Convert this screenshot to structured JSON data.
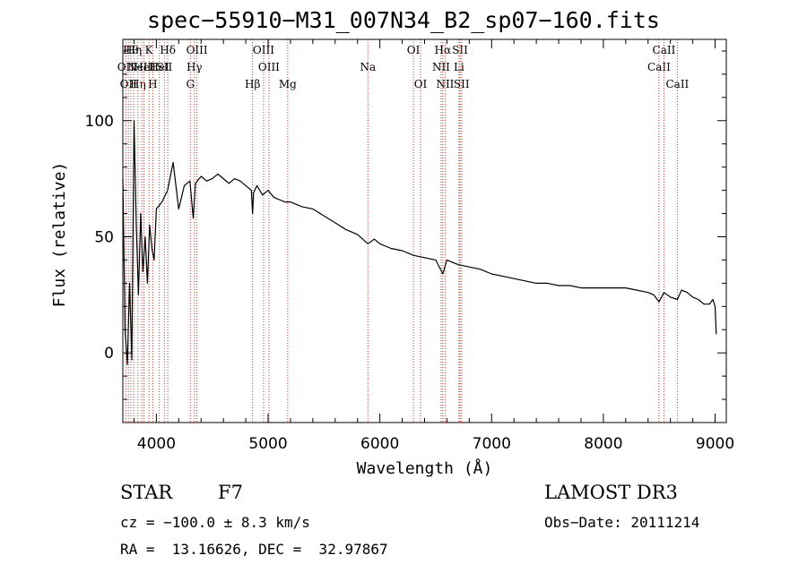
{
  "chart_data": {
    "type": "line",
    "title": "spec−55910−M31_007N34_B2_sp07−160.fits",
    "xlabel": "Wavelength (Å)",
    "ylabel": "Flux (relative)",
    "xlim": [
      3700,
      9100
    ],
    "ylim": [
      -30,
      135
    ],
    "xticks": [
      4000,
      5000,
      6000,
      7000,
      8000,
      9000
    ],
    "yticks": [
      0,
      50,
      100
    ],
    "series": [
      {
        "name": "flux",
        "x": [
          3700,
          3720,
          3740,
          3760,
          3780,
          3800,
          3820,
          3840,
          3860,
          3880,
          3900,
          3920,
          3940,
          3960,
          3980,
          4000,
          4050,
          4100,
          4150,
          4200,
          4250,
          4300,
          4330,
          4350,
          4400,
          4450,
          4500,
          4550,
          4600,
          4650,
          4700,
          4750,
          4800,
          4850,
          4861,
          4870,
          4900,
          4950,
          5000,
          5050,
          5100,
          5150,
          5200,
          5300,
          5400,
          5500,
          5600,
          5700,
          5800,
          5893,
          5950,
          6000,
          6100,
          6200,
          6300,
          6400,
          6500,
          6563,
          6600,
          6700,
          6800,
          6900,
          7000,
          7100,
          7200,
          7300,
          7400,
          7500,
          7600,
          7700,
          7800,
          7900,
          8000,
          8100,
          8200,
          8300,
          8400,
          8450,
          8498,
          8542,
          8600,
          8662,
          8700,
          8750,
          8800,
          8850,
          8900,
          8950,
          8980,
          9000,
          9010
        ],
        "values": [
          75,
          10,
          -5,
          30,
          -3,
          100,
          55,
          25,
          60,
          35,
          50,
          30,
          55,
          45,
          40,
          62,
          65,
          70,
          82,
          62,
          72,
          74,
          58,
          73,
          76,
          74,
          75,
          77,
          75,
          73,
          75,
          74,
          72,
          70,
          60,
          69,
          72,
          68,
          70,
          67,
          66,
          65,
          65,
          63,
          62,
          59,
          56,
          53,
          51,
          47,
          49,
          47,
          45,
          44,
          42,
          41,
          40,
          34,
          40,
          38,
          37,
          36,
          34,
          33,
          32,
          31,
          30,
          30,
          29,
          29,
          28,
          28,
          28,
          28,
          28,
          27,
          26,
          25,
          22,
          26,
          24,
          23,
          27,
          26,
          24,
          23,
          21,
          21,
          23,
          20,
          8
        ]
      }
    ],
    "lines": [
      {
        "wavelength": 3727,
        "label": "OII",
        "row": 2
      },
      {
        "wavelength": 3750,
        "label": "OII",
        "row": 3
      },
      {
        "wavelength": 3771,
        "label": "Hθ",
        "row": 1
      },
      {
        "wavelength": 3798,
        "label": "Hη",
        "row": 1
      },
      {
        "wavelength": 3835,
        "label": "Hη",
        "row": 3
      },
      {
        "wavelength": 3869,
        "label": "NeIII",
        "row": 2
      },
      {
        "wavelength": 3889,
        "label": "HeI",
        "row": 2
      },
      {
        "wavelength": 3934,
        "label": "K",
        "row": 1
      },
      {
        "wavelength": 3968,
        "label": "H",
        "row": 3
      },
      {
        "wavelength": 4026,
        "label": "HeI",
        "row": 2
      },
      {
        "wavelength": 4072,
        "label": "SII",
        "row": 2
      },
      {
        "wavelength": 4102,
        "label": "Hδ",
        "row": 1
      },
      {
        "wavelength": 4304,
        "label": "G",
        "row": 3
      },
      {
        "wavelength": 4340,
        "label": "Hγ",
        "row": 2
      },
      {
        "wavelength": 4363,
        "label": "OIII",
        "row": 1
      },
      {
        "wavelength": 4861,
        "label": "Hβ",
        "row": 3
      },
      {
        "wavelength": 4959,
        "label": "OIII",
        "row": 1
      },
      {
        "wavelength": 5007,
        "label": "OIII",
        "row": 2
      },
      {
        "wavelength": 5175,
        "label": "Mg",
        "row": 3
      },
      {
        "wavelength": 5893,
        "label": "Na",
        "row": 2
      },
      {
        "wavelength": 6300,
        "label": "OI",
        "row": 1
      },
      {
        "wavelength": 6364,
        "label": "OI",
        "row": 3
      },
      {
        "wavelength": 6548,
        "label": "NII",
        "row": 2
      },
      {
        "wavelength": 6563,
        "label": "Hα",
        "row": 1
      },
      {
        "wavelength": 6584,
        "label": "NII",
        "row": 3
      },
      {
        "wavelength": 6708,
        "label": "Li",
        "row": 2
      },
      {
        "wavelength": 6717,
        "label": "SII",
        "row": 1
      },
      {
        "wavelength": 6731,
        "label": "SII",
        "row": 3
      },
      {
        "wavelength": 8498,
        "label": "CaII",
        "row": 2
      },
      {
        "wavelength": 8542,
        "label": "CaII",
        "row": 1
      },
      {
        "wavelength": 8662,
        "label": "CaII",
        "row": 3
      }
    ],
    "colors": {
      "axis": "#000000",
      "spectrum": "#000000",
      "line_marker": "#c0392b"
    }
  },
  "info": {
    "class_label": "STAR",
    "subclass": "F7",
    "survey": "LAMOST DR3",
    "redshift_line": "cz = −100.0 ± 8.3 km/s",
    "obs_date": "Obs−Date: 20111214",
    "coords": "RA =  13.16626, DEC =  32.97867"
  }
}
